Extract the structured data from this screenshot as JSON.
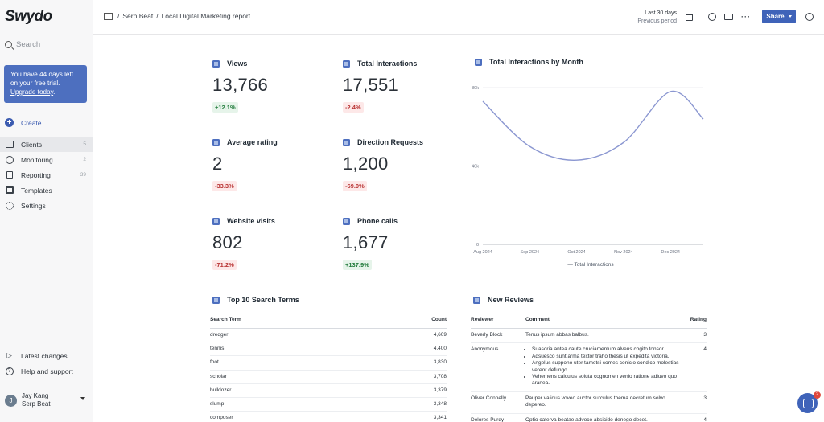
{
  "app": {
    "logo": "Swydo"
  },
  "sidebar": {
    "search_placeholder": "Search",
    "trial": {
      "text": "You have 44 days left on your free trial.",
      "link": "Upgrade today",
      "after": "."
    },
    "create_label": "Create",
    "items": [
      {
        "label": "Clients",
        "count": "5",
        "icon": "briefcase-icon"
      },
      {
        "label": "Monitoring",
        "count": "2",
        "icon": "monitor-icon"
      },
      {
        "label": "Reporting",
        "count": "39",
        "icon": "document-icon"
      },
      {
        "label": "Templates",
        "count": "",
        "icon": "templates-icon"
      },
      {
        "label": "Settings",
        "count": "",
        "icon": "gear-icon"
      }
    ],
    "bottom": [
      {
        "label": "Latest changes",
        "icon": "megaphone-icon"
      },
      {
        "label": "Help and support",
        "icon": "help-icon"
      }
    ],
    "user": {
      "initial": "J",
      "name": "Jay Kang",
      "org": "Serp Beat"
    }
  },
  "header": {
    "crumb_client": "Serp Beat",
    "crumb_report": "Local Digital Marketing report",
    "period": "Last 30 days",
    "compare": "Previous period",
    "share_label": "Share"
  },
  "metrics": [
    {
      "title": "Views",
      "value": "13,766",
      "change": "+12.1%",
      "trend": "up"
    },
    {
      "title": "Total Interactions",
      "value": "17,551",
      "change": "-2.4%",
      "trend": "down"
    },
    {
      "title": "Average rating",
      "value": "2",
      "change": "-33.3%",
      "trend": "down"
    },
    {
      "title": "Direction Requests",
      "value": "1,200",
      "change": "-69.0%",
      "trend": "down"
    },
    {
      "title": "Website visits",
      "value": "802",
      "change": "-71.2%",
      "trend": "down"
    },
    {
      "title": "Phone calls",
      "value": "1,677",
      "change": "+137.9%",
      "trend": "up"
    }
  ],
  "chart_data": {
    "type": "line",
    "title": "Total Interactions by Month",
    "x": [
      "Aug 2024",
      "Sep 2024",
      "Oct 2024",
      "Nov 2024",
      "Dec 2024"
    ],
    "series": [
      {
        "name": "Total Interactions",
        "values": [
          73000,
          50000,
          43000,
          52000,
          78000
        ],
        "color": "#8b97d1"
      }
    ],
    "y_ticks": [
      "0",
      "40k",
      "80k"
    ],
    "ylim": [
      0,
      80000
    ],
    "x_extent": [
      0,
      4.7
    ],
    "grid": true,
    "legend": "bottom",
    "end_value": 64000
  },
  "search_terms": {
    "title": "Top 10 Search Terms",
    "headers": [
      "Search Term",
      "Count"
    ],
    "rows": [
      [
        "dredger",
        "4,609"
      ],
      [
        "tennis",
        "4,400"
      ],
      [
        "foot",
        "3,830"
      ],
      [
        "scholar",
        "3,708"
      ],
      [
        "bulldozer",
        "3,379"
      ],
      [
        "slump",
        "3,348"
      ],
      [
        "composer",
        "3,341"
      ]
    ]
  },
  "reviews": {
    "title": "New Reviews",
    "headers": [
      "Reviewer",
      "Comment",
      "Rating"
    ],
    "rows": [
      {
        "reviewer": "Beverly Block",
        "comment": "Tenus ipsum abbas balbus.",
        "rating": "3"
      },
      {
        "reviewer": "Anonymous",
        "bullets": [
          "Suasoria antea caute cruciamentum alveus cogito tonsor.",
          "Adsuesco sunt arma textor traho thesis ut expedita victoria.",
          "Angelus suppono uter tametsi comes conicio condico molestias vereor defungo.",
          "Vehemens calculus soluta cognomen venio ratione adiuvo quo aranea."
        ],
        "rating": "4"
      },
      {
        "reviewer": "Oliver Connelly",
        "comment": "Pauper validus voveo auctor surculus thema decretum solvo depereo.",
        "rating": "3"
      },
      {
        "reviewer": "Delores Purdy",
        "comment": "Optio caterva beatae advoco absicido denego decet.",
        "rating": "4"
      }
    ]
  },
  "chat": {
    "badge": "2"
  }
}
